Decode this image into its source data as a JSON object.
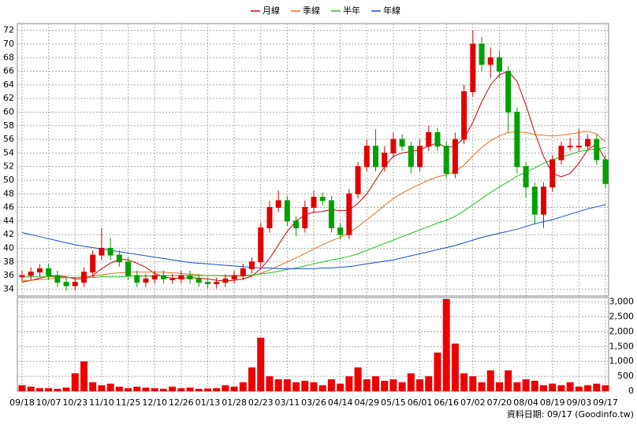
{
  "chart_data": [
    {
      "type": "candlestick",
      "categories": [
        "09/18",
        null,
        null,
        "10/07",
        null,
        null,
        "10/23",
        null,
        null,
        "11/10",
        null,
        null,
        "11/25",
        null,
        null,
        "12/10",
        null,
        null,
        "12/26",
        null,
        null,
        "01/13",
        null,
        null,
        "01/28",
        null,
        null,
        "02/23",
        null,
        null,
        "03/11",
        null,
        null,
        "03/26",
        null,
        null,
        "04/14",
        null,
        null,
        "04/29",
        null,
        null,
        "05/15",
        null,
        null,
        "06/01",
        null,
        null,
        "06/16",
        null,
        null,
        "07/02",
        null,
        null,
        "07/20",
        null,
        null,
        "08/04",
        null,
        null,
        "08/19",
        null,
        null,
        "09/03",
        null,
        null,
        "09/17"
      ],
      "open": [
        35.8,
        36,
        36.5,
        37,
        36,
        35,
        34.5,
        35,
        36.5,
        39,
        40,
        39,
        38,
        36,
        35,
        35.5,
        36,
        35.5,
        35.5,
        36,
        35.5,
        35,
        34.8,
        35,
        35.5,
        36,
        37,
        38,
        43,
        46,
        47,
        44,
        43,
        46,
        47.5,
        47,
        43,
        42,
        48,
        52,
        55,
        52,
        54,
        56,
        55,
        52,
        55,
        57,
        55,
        51,
        56,
        63,
        70,
        67,
        68,
        66,
        60,
        52,
        49,
        45,
        49,
        53,
        55,
        55,
        55,
        56,
        53
      ],
      "high": [
        36.7,
        37.2,
        37.7,
        37.7,
        36.7,
        35.7,
        35.7,
        37.2,
        39.7,
        43,
        41.5,
        39.7,
        38.7,
        36.7,
        36.2,
        36.7,
        36.7,
        36.2,
        36.7,
        36.7,
        36.2,
        35.7,
        35.7,
        36.2,
        36.7,
        37.7,
        38.7,
        43.7,
        47,
        48.5,
        47.7,
        44.7,
        47,
        48.5,
        48.2,
        47.7,
        43.7,
        48.7,
        52.7,
        56,
        57.5,
        55,
        57,
        56.7,
        55.7,
        56,
        58,
        57.7,
        55.7,
        57,
        64,
        72,
        71,
        69.5,
        69,
        66.7,
        60.7,
        52.7,
        49.7,
        49.7,
        53.7,
        55.7,
        56.2,
        57.5,
        56.7,
        56.7,
        53.7
      ],
      "low": [
        35.1,
        35.3,
        35.8,
        35.3,
        34.3,
        33.8,
        33.8,
        34.3,
        35.8,
        38.3,
        38.3,
        37.3,
        35.3,
        34.3,
        34.3,
        34.8,
        34.8,
        34.8,
        34.8,
        34.8,
        34.3,
        34.1,
        34.1,
        34.3,
        34.8,
        35.3,
        36.3,
        37.3,
        42.3,
        45.3,
        43.3,
        41.8,
        42.3,
        45.3,
        46.3,
        42.3,
        41.3,
        41.3,
        47.3,
        51.3,
        51.3,
        51.3,
        53.3,
        54.3,
        51,
        51.3,
        54.3,
        54.3,
        50.3,
        50.3,
        55.3,
        62.3,
        66,
        65,
        65,
        57,
        51,
        47.5,
        43.5,
        43,
        48.3,
        52.3,
        54.3,
        54.3,
        54.3,
        52.3,
        48.8
      ],
      "close": [
        36,
        36.5,
        37,
        36,
        35,
        34.5,
        35,
        36.5,
        39,
        40,
        39,
        38,
        36,
        35,
        35.5,
        36,
        35.5,
        35.5,
        36,
        35.5,
        35,
        34.8,
        35,
        35.5,
        36,
        37,
        38,
        43,
        46,
        47,
        44,
        43,
        46,
        47.5,
        47,
        43,
        42,
        48,
        52,
        55,
        52,
        54,
        56,
        55,
        52,
        55,
        57,
        55,
        51,
        56,
        63,
        70,
        67,
        68,
        66,
        60,
        52,
        49,
        45,
        49,
        53,
        55,
        55,
        55,
        56,
        53,
        49.5
      ],
      "up_color": "#e00000",
      "down_color": "#00a000",
      "series": [
        {
          "name": "月線",
          "color": "#d00000",
          "values": [
            35,
            35.3,
            35.6,
            35.9,
            36,
            35.8,
            35.5,
            35.5,
            36,
            37,
            37.8,
            38.4,
            38.3,
            37.8,
            37.2,
            36.3,
            35.8,
            35.6,
            35.6,
            35.7,
            35.6,
            35.5,
            35.3,
            35.2,
            35.3,
            35.5,
            35.9,
            37,
            38.5,
            40.5,
            42.5,
            44,
            44.9,
            45.3,
            45.4,
            45.7,
            45.5,
            45.6,
            46.6,
            48,
            50,
            52,
            53.5,
            54,
            54.2,
            54.5,
            55,
            55.5,
            54.8,
            55,
            56.2,
            58.5,
            61.5,
            64,
            65.5,
            66,
            64.5,
            61,
            57,
            53.5,
            51,
            50.5,
            51,
            52.5,
            54.5,
            55.3,
            53
          ]
        },
        {
          "name": "季線",
          "color": "#e07020",
          "values": [
            35.2,
            35.3,
            35.4,
            35.5,
            35.6,
            35.7,
            35.7,
            35.8,
            35.9,
            36.1,
            36.3,
            36.4,
            36.5,
            36.5,
            36.5,
            36.5,
            36.5,
            36.4,
            36.3,
            36.2,
            36.1,
            36,
            36,
            35.9,
            35.9,
            35.9,
            36,
            36.3,
            36.8,
            37.4,
            38,
            38.6,
            39.2,
            39.9,
            40.5,
            41.1,
            41.6,
            42.3,
            43.2,
            44.2,
            45.2,
            46.3,
            47.3,
            48.1,
            48.8,
            49.4,
            50,
            50.5,
            50.8,
            51.3,
            52.2,
            53.6,
            54.8,
            55.8,
            56.5,
            57,
            57.1,
            57,
            56.7,
            56.6,
            56.5,
            56.6,
            56.8,
            57,
            57.2,
            56.8,
            55.6
          ]
        },
        {
          "name": "半年",
          "color": "#20c020",
          "values": [
            35.8,
            35.8,
            35.8,
            35.8,
            35.8,
            35.7,
            35.7,
            35.7,
            35.7,
            35.8,
            35.8,
            35.8,
            35.9,
            35.9,
            35.9,
            35.9,
            36,
            36,
            36,
            36,
            36,
            36,
            36,
            36,
            36,
            36,
            36.1,
            36.2,
            36.4,
            36.6,
            36.9,
            37.1,
            37.4,
            37.7,
            38,
            38.3,
            38.5,
            38.8,
            39.2,
            39.7,
            40.2,
            40.7,
            41.2,
            41.7,
            42.2,
            42.7,
            43.2,
            43.7,
            44.1,
            44.7,
            45.5,
            46.4,
            47.3,
            48.2,
            49,
            49.8,
            50.6,
            51.2,
            51.8,
            52.5,
            53,
            53.4,
            53.8,
            54.2,
            54.4,
            54.6,
            54.8
          ]
        },
        {
          "name": "年線",
          "color": "#1050c0",
          "values": [
            42.3,
            42,
            41.7,
            41.4,
            41.1,
            40.8,
            40.5,
            40.3,
            40.1,
            39.9,
            39.7,
            39.5,
            39.3,
            39.1,
            38.9,
            38.7,
            38.5,
            38.3,
            38.1,
            37.9,
            37.8,
            37.7,
            37.6,
            37.5,
            37.4,
            37.3,
            37.2,
            37.1,
            37.1,
            37,
            37,
            37,
            37,
            37,
            37.1,
            37.1,
            37.2,
            37.3,
            37.5,
            37.7,
            37.9,
            38.1,
            38.3,
            38.6,
            38.9,
            39.2,
            39.5,
            39.8,
            40.1,
            40.4,
            40.8,
            41.2,
            41.6,
            41.9,
            42.2,
            42.5,
            42.8,
            43.2,
            43.6,
            43.9,
            44.2,
            44.6,
            45,
            45.4,
            45.8,
            46.1,
            46.4
          ]
        }
      ],
      "ylim": [
        33,
        73
      ],
      "yticks": [
        34,
        36,
        38,
        40,
        42,
        44,
        46,
        48,
        50,
        52,
        54,
        56,
        58,
        60,
        62,
        64,
        66,
        68,
        70,
        72
      ],
      "grid": true,
      "legend": "top"
    },
    {
      "type": "bar",
      "values": [
        200,
        150,
        100,
        100,
        80,
        120,
        600,
        1000,
        300,
        200,
        250,
        150,
        100,
        150,
        120,
        100,
        80,
        150,
        100,
        120,
        80,
        90,
        100,
        200,
        150,
        300,
        800,
        1800,
        500,
        400,
        400,
        300,
        350,
        300,
        200,
        400,
        250,
        500,
        800,
        400,
        500,
        350,
        400,
        300,
        600,
        400,
        500,
        1300,
        3100,
        1600,
        600,
        500,
        300,
        700,
        300,
        700,
        300,
        400,
        350,
        200,
        250,
        200,
        300,
        150,
        200,
        250,
        200
      ],
      "color": "#ee0000",
      "ylim": [
        0,
        3150
      ],
      "yticks": [
        0,
        500,
        {
          "value": 1000,
          "label": "1,000"
        },
        {
          "value": 1500,
          "label": "1,500"
        },
        {
          "value": 2000,
          "label": "2,000"
        },
        {
          "value": 2500,
          "label": "2,500"
        },
        {
          "value": 3000,
          "label": "3,000"
        }
      ],
      "grid": true,
      "note": "資料日期: 09/17 (Goodinfo.tw)"
    }
  ]
}
